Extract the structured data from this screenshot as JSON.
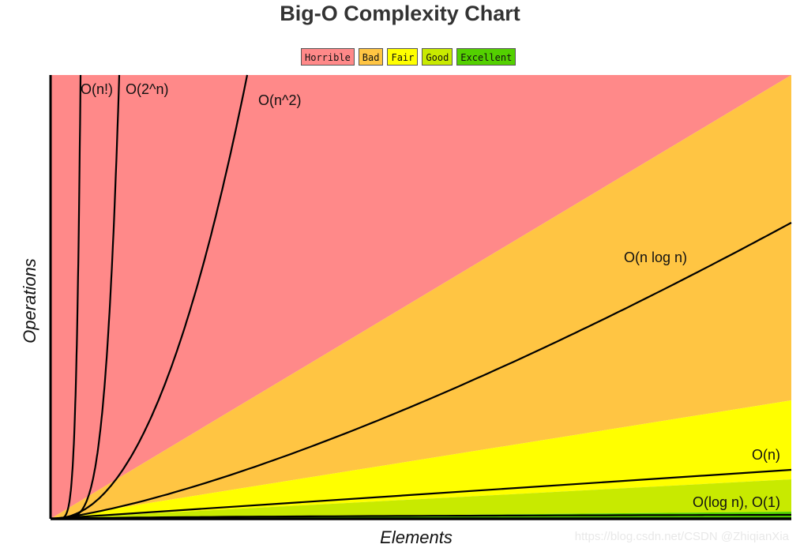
{
  "chart_data": {
    "type": "line",
    "title": "Big-O Complexity Chart",
    "xlabel": "Elements",
    "ylabel": "Operations",
    "legend": [
      {
        "label": "Horrible",
        "color": "#ff8989"
      },
      {
        "label": "Bad",
        "color": "#ffc543"
      },
      {
        "label": "Fair",
        "color": "#ffff00"
      },
      {
        "label": "Good",
        "color": "#c8ea00"
      },
      {
        "label": "Excellent",
        "color": "#53d000"
      }
    ],
    "curves": [
      {
        "label": "O(n!)",
        "kind": "factorial"
      },
      {
        "label": "O(2^n)",
        "kind": "exp"
      },
      {
        "label": "O(n^2)",
        "kind": "quad"
      },
      {
        "label": "O(n log n)",
        "kind": "nlogn"
      },
      {
        "label": "O(n)",
        "kind": "linear"
      },
      {
        "label": "O(log n), O(1)",
        "kind": "logn"
      }
    ],
    "watermark": "https://blog.csdn.net/CSDN @ZhiqianXia"
  }
}
